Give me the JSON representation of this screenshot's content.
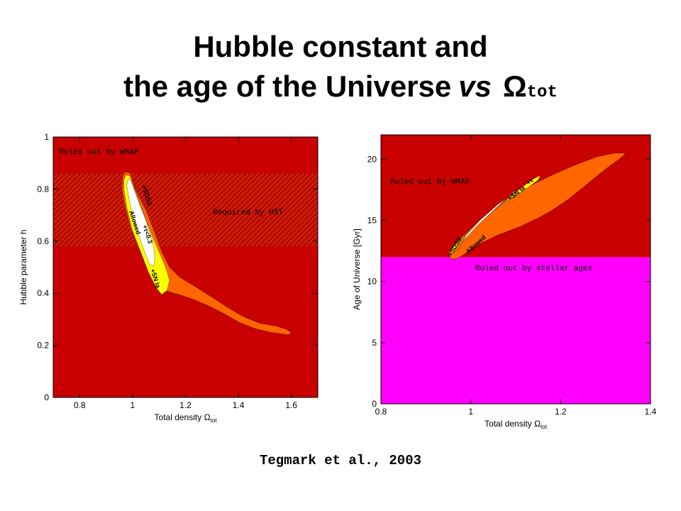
{
  "title": {
    "line1": "Hubble constant and",
    "line2_prefix": "the age of the Universe",
    "vs": "vs",
    "omega": "Ω",
    "omega_sub": "tot"
  },
  "citation": "Tegmark et al., 2003",
  "colors": {
    "ruled_out_wmap": "#c80000",
    "wide_contour": "#ff6600",
    "mid_contour": "#ffff00",
    "allowed": "#ffffff",
    "stellar_ages": "#ff00ff",
    "hst_hatch": "#a06018"
  },
  "chart_data": [
    {
      "type": "area",
      "xlabel": "Total density Ω",
      "xlabel_sub": "tot",
      "ylabel": "Hubble parameter h",
      "xlim": [
        0.7,
        1.7
      ],
      "ylim": [
        0,
        1
      ],
      "xticks": [
        "0.8",
        "1",
        "1.2",
        "1.4",
        "1.6"
      ],
      "xtick_values": [
        0.8,
        1.0,
        1.2,
        1.4,
        1.6
      ],
      "yticks": [
        "0",
        "0.2",
        "0.4",
        "0.6",
        "0.8",
        "1"
      ],
      "ytick_values": [
        0,
        0.2,
        0.4,
        0.6,
        0.8,
        1.0
      ],
      "hst_band": [
        0.58,
        0.86
      ],
      "labels": {
        "wmap": "Ruled out by WMAP",
        "hst": "Required by HST",
        "sdss": "+SDSS",
        "tau": "+τ<0.3",
        "sn": "+SN Ia",
        "allowed": "Allowed"
      },
      "regions": [
        {
          "name": "WMAP wide",
          "points": [
            [
              0.97,
              0.865
            ],
            [
              0.99,
              0.862
            ],
            [
              1.01,
              0.8
            ],
            [
              1.05,
              0.72
            ],
            [
              1.085,
              0.63
            ],
            [
              1.11,
              0.56
            ],
            [
              1.14,
              0.5
            ],
            [
              1.18,
              0.46
            ],
            [
              1.23,
              0.43
            ],
            [
              1.3,
              0.385
            ],
            [
              1.36,
              0.345
            ],
            [
              1.42,
              0.31
            ],
            [
              1.48,
              0.285
            ],
            [
              1.54,
              0.275
            ],
            [
              1.58,
              0.262
            ],
            [
              1.6,
              0.25
            ],
            [
              1.59,
              0.24
            ],
            [
              1.56,
              0.245
            ],
            [
              1.52,
              0.25
            ],
            [
              1.46,
              0.265
            ],
            [
              1.4,
              0.29
            ],
            [
              1.34,
              0.325
            ],
            [
              1.28,
              0.355
            ],
            [
              1.22,
              0.38
            ],
            [
              1.175,
              0.395
            ],
            [
              1.14,
              0.405
            ],
            [
              1.11,
              0.42
            ],
            [
              1.08,
              0.46
            ],
            [
              1.05,
              0.51
            ],
            [
              1.02,
              0.58
            ],
            [
              0.99,
              0.66
            ],
            [
              0.97,
              0.74
            ],
            [
              0.96,
              0.8
            ],
            [
              0.962,
              0.845
            ]
          ]
        },
        {
          "name": "+SDSS",
          "points": [
            [
              0.975,
              0.855
            ],
            [
              0.99,
              0.85
            ],
            [
              1.01,
              0.79
            ],
            [
              1.04,
              0.71
            ],
            [
              1.07,
              0.63
            ],
            [
              1.1,
              0.56
            ],
            [
              1.125,
              0.5
            ],
            [
              1.14,
              0.45
            ],
            [
              1.13,
              0.41
            ],
            [
              1.11,
              0.395
            ],
            [
              1.09,
              0.42
            ],
            [
              1.06,
              0.48
            ],
            [
              1.03,
              0.56
            ],
            [
              1.0,
              0.64
            ],
            [
              0.98,
              0.72
            ],
            [
              0.968,
              0.79
            ],
            [
              0.967,
              0.835
            ]
          ]
        },
        {
          "name": "Allowed",
          "points": [
            [
              0.983,
              0.84
            ],
            [
              0.995,
              0.83
            ],
            [
              1.02,
              0.76
            ],
            [
              1.05,
              0.68
            ],
            [
              1.075,
              0.6
            ],
            [
              1.085,
              0.54
            ],
            [
              1.08,
              0.505
            ],
            [
              1.065,
              0.51
            ],
            [
              1.045,
              0.56
            ],
            [
              1.02,
              0.63
            ],
            [
              1.0,
              0.7
            ],
            [
              0.985,
              0.77
            ],
            [
              0.978,
              0.815
            ]
          ]
        }
      ]
    },
    {
      "type": "area",
      "xlabel": "Total density Ω",
      "xlabel_sub": "tot",
      "ylabel": "Age of Universe [Gyr]",
      "xlim": [
        0.8,
        1.4
      ],
      "ylim": [
        0,
        22
      ],
      "xticks": [
        "0.8",
        "1",
        "1.2",
        "1.4"
      ],
      "xtick_values": [
        0.8,
        1.0,
        1.2,
        1.4
      ],
      "yticks": [
        "0",
        "5",
        "10",
        "15",
        "20"
      ],
      "ytick_values": [
        0,
        5,
        10,
        15,
        20
      ],
      "stellar_age_limit": 12,
      "labels": {
        "wmap": "Ruled out by WMAP",
        "stellar": "Ruled out by stellar ages",
        "sdss": "+SDSS",
        "allowed": "Allowed",
        "sn": "+SN Ia",
        "tau": "+τ"
      },
      "regions": [
        {
          "name": "WMAP wide",
          "points": [
            [
              0.955,
              11.9
            ],
            [
              0.95,
              12.3
            ],
            [
              0.96,
              12.9
            ],
            [
              0.99,
              14.0
            ],
            [
              1.03,
              15.3
            ],
            [
              1.08,
              16.6
            ],
            [
              1.13,
              17.8
            ],
            [
              1.18,
              18.7
            ],
            [
              1.23,
              19.5
            ],
            [
              1.28,
              20.2
            ],
            [
              1.32,
              20.5
            ],
            [
              1.345,
              20.5
            ],
            [
              1.33,
              20.0
            ],
            [
              1.3,
              19.2
            ],
            [
              1.26,
              18.0
            ],
            [
              1.22,
              16.8
            ],
            [
              1.18,
              15.8
            ],
            [
              1.15,
              15.2
            ],
            [
              1.11,
              14.5
            ],
            [
              1.06,
              13.8
            ],
            [
              1.01,
              12.9
            ],
            [
              0.98,
              12.1
            ],
            [
              0.965,
              11.8
            ]
          ]
        },
        {
          "name": "+SDSS",
          "points": [
            [
              0.955,
              12.2
            ],
            [
              0.96,
              12.8
            ],
            [
              0.99,
              13.9
            ],
            [
              1.03,
              15.2
            ],
            [
              1.07,
              16.4
            ],
            [
              1.11,
              17.6
            ],
            [
              1.14,
              18.4
            ],
            [
              1.155,
              18.7
            ],
            [
              1.15,
              18.3
            ],
            [
              1.12,
              17.5
            ],
            [
              1.08,
              16.6
            ],
            [
              1.04,
              15.5
            ],
            [
              1.0,
              14.3
            ],
            [
              0.975,
              13.2
            ],
            [
              0.962,
              12.4
            ]
          ]
        },
        {
          "name": "Allowed",
          "points": [
            [
              0.97,
              12.5
            ],
            [
              0.985,
              13.4
            ],
            [
              1.015,
              14.6
            ],
            [
              1.05,
              15.8
            ],
            [
              1.08,
              16.8
            ],
            [
              1.1,
              17.5
            ],
            [
              1.095,
              17.2
            ],
            [
              1.06,
              16.3
            ],
            [
              1.02,
              15.0
            ],
            [
              0.99,
              13.8
            ],
            [
              0.975,
              12.8
            ]
          ]
        }
      ]
    }
  ]
}
